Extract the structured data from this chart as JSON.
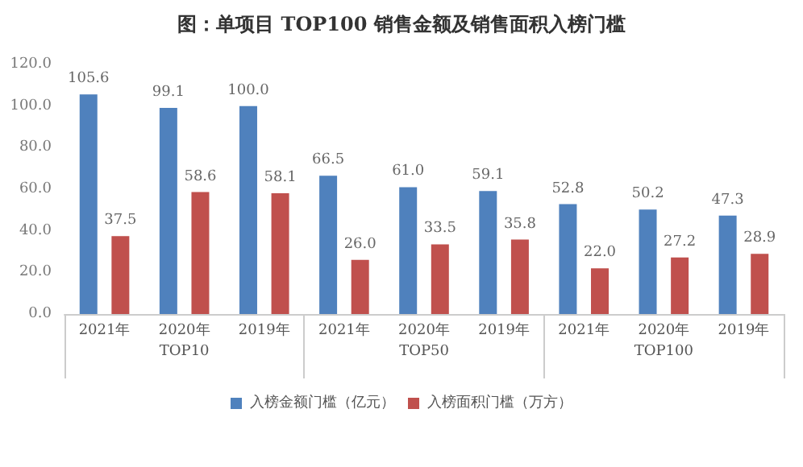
{
  "chart_data": {
    "type": "bar",
    "title": "图：单项目 TOP100 销售金额及销售面积入榜门槛",
    "categories": [
      "2021年",
      "2020年",
      "2019年",
      "2021年",
      "2020年",
      "2019年",
      "2021年",
      "2020年",
      "2019年"
    ],
    "series": [
      {
        "name": "入榜金额门槛（亿元）",
        "color": "#4f81bd",
        "values": [
          105.6,
          99.1,
          100.0,
          66.5,
          61.0,
          59.1,
          52.8,
          50.2,
          47.3
        ],
        "value_labels": [
          "105.6",
          "99.1",
          "100.0",
          "66.5",
          "61.0",
          "59.1",
          "52.8",
          "50.2",
          "47.3"
        ]
      },
      {
        "name": "入榜面积门槛（万方）",
        "color": "#c0504d",
        "values": [
          37.5,
          58.6,
          58.1,
          26.0,
          33.5,
          35.8,
          22.0,
          27.2,
          28.9
        ],
        "value_labels": [
          "37.5",
          "58.6",
          "58.1",
          "26.0",
          "33.5",
          "35.8",
          "22.0",
          "27.2",
          "28.9"
        ]
      }
    ],
    "annotations": [
      "TOP10",
      "TOP50",
      "TOP100"
    ],
    "ylim": [
      0,
      120
    ],
    "yticks": [
      {
        "value": 0,
        "label": "0.0"
      },
      {
        "value": 20,
        "label": "20.0"
      },
      {
        "value": 40,
        "label": "40.0"
      },
      {
        "value": 60,
        "label": "60.0"
      },
      {
        "value": 80,
        "label": "80.0"
      },
      {
        "value": 100,
        "label": "100.0"
      },
      {
        "value": 120,
        "label": "120.0"
      }
    ],
    "grid": false,
    "legend": "bottom"
  }
}
